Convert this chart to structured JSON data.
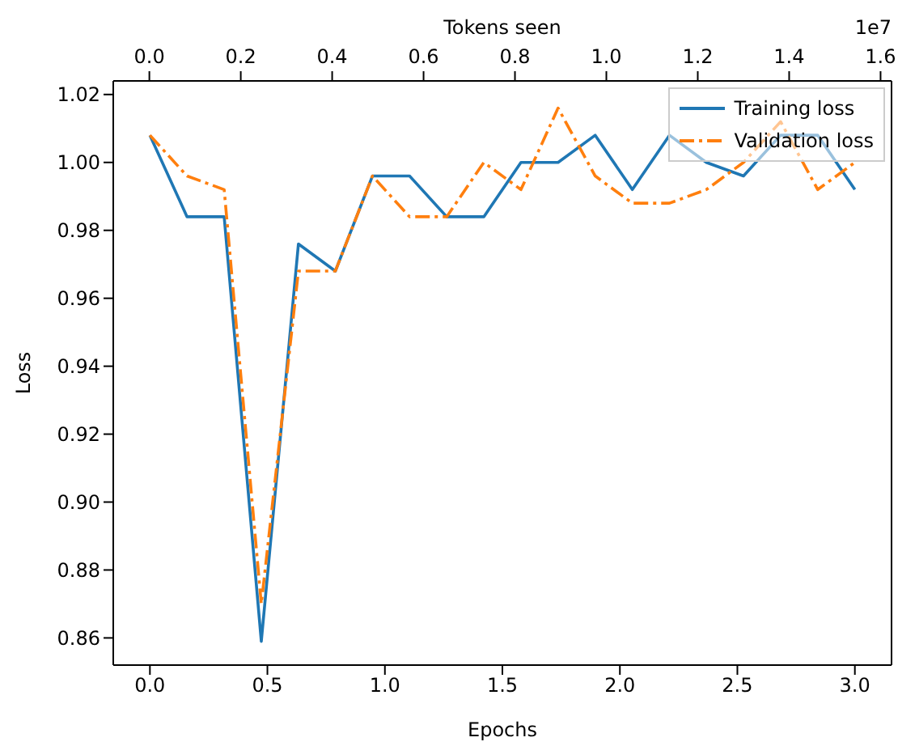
{
  "chart_data": {
    "type": "line",
    "xlabel": "Epochs",
    "ylabel": "Loss",
    "x2label": "Tokens seen",
    "x": [
      0,
      0.158,
      0.316,
      0.474,
      0.632,
      0.789,
      0.947,
      1.105,
      1.263,
      1.421,
      1.579,
      1.737,
      1.895,
      2.053,
      2.211,
      2.368,
      2.526,
      2.684,
      2.842,
      3.0
    ],
    "series": [
      {
        "name": "Training loss",
        "color": "#1f77b4",
        "line_style": "solid",
        "values": [
          1.008,
          0.984,
          0.984,
          0.859,
          0.976,
          0.968,
          0.996,
          0.996,
          0.984,
          0.984,
          1.0,
          1.0,
          1.008,
          0.992,
          1.008,
          1.0,
          0.996,
          1.008,
          1.008,
          0.992
        ]
      },
      {
        "name": "Validation loss",
        "color": "#ff7f0e",
        "line_style": "dashdot",
        "values": [
          1.008,
          0.996,
          0.992,
          0.87,
          0.968,
          0.968,
          0.996,
          0.984,
          0.984,
          1.0,
          0.992,
          1.016,
          0.996,
          0.988,
          0.988,
          0.992,
          1.0,
          1.012,
          0.992,
          1.0
        ]
      }
    ],
    "xlim": [
      -0.156,
      3.156
    ],
    "xticks": [
      {
        "value": 0,
        "label": "0.0"
      },
      {
        "value": 0.5,
        "label": "0.5"
      },
      {
        "value": 1,
        "label": "1.0"
      },
      {
        "value": 1.5,
        "label": "1.5"
      },
      {
        "value": 2,
        "label": "2.0"
      },
      {
        "value": 2.5,
        "label": "2.5"
      },
      {
        "value": 3,
        "label": "3.0"
      }
    ],
    "x2lim": [
      -0.079,
      1.624
    ],
    "x2ticks": [
      {
        "value": 0,
        "label": "0.0"
      },
      {
        "value": 0.2,
        "label": "0.2"
      },
      {
        "value": 0.4,
        "label": "0.4"
      },
      {
        "value": 0.6,
        "label": "0.6"
      },
      {
        "value": 0.8,
        "label": "0.8"
      },
      {
        "value": 1.0,
        "label": "1.0"
      },
      {
        "value": 1.2,
        "label": "1.2"
      },
      {
        "value": 1.4,
        "label": "1.4"
      },
      {
        "value": 1.6,
        "label": "1.6"
      }
    ],
    "ylim": [
      0.852,
      1.024
    ],
    "yticks": [
      {
        "value": 0.86,
        "label": "0.86"
      },
      {
        "value": 0.88,
        "label": "0.88"
      },
      {
        "value": 0.9,
        "label": "0.90"
      },
      {
        "value": 0.92,
        "label": "0.92"
      },
      {
        "value": 0.94,
        "label": "0.94"
      },
      {
        "value": 0.96,
        "label": "0.96"
      },
      {
        "value": 0.98,
        "label": "0.98"
      },
      {
        "value": 1.0,
        "label": "1.00"
      },
      {
        "value": 1.02,
        "label": "1.02"
      }
    ],
    "annotations": [
      "1e7"
    ],
    "legend": "top right",
    "grid": false,
    "marker": "none"
  }
}
